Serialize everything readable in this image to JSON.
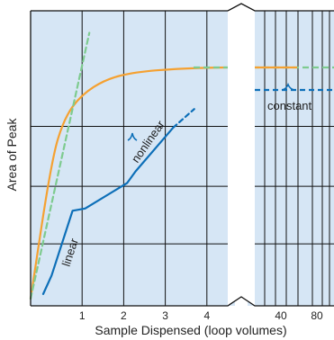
{
  "chart_data": {
    "type": "line",
    "title": "",
    "xlabel": "Sample Dispensed (loop volumes)",
    "ylabel": "Area of Peak",
    "x_segments": [
      {
        "name": "main",
        "xlim": [
          0,
          5
        ],
        "tick_values": [
          1,
          2,
          3,
          4
        ],
        "tick_labels": [
          "1",
          "2",
          "3",
          "4"
        ]
      },
      {
        "name": "extended",
        "tick_labels": [
          "40",
          "80"
        ]
      }
    ],
    "grid": true,
    "axis_break": true,
    "colors": {
      "plot_background": "#d6e6f5",
      "grid": "#111111",
      "orange": "#f5a131",
      "blue": "#0d6fb8",
      "green": "#7ecb8f"
    },
    "series": [
      {
        "color": "#f5a131",
        "style": "solid",
        "points": [
          [
            0,
            0
          ],
          [
            0.5,
            0.6
          ],
          [
            0.8,
            0.78
          ],
          [
            1.2,
            0.88
          ],
          [
            1.8,
            0.95
          ],
          [
            2.5,
            0.98
          ],
          [
            3.5,
            0.995
          ],
          [
            4.5,
            1.0
          ],
          [
            5,
            1.0
          ]
        ]
      },
      {
        "color": "#0d6fb8",
        "style": "solid",
        "points": [
          [
            0.3,
            0.02
          ],
          [
            0.5,
            0.1
          ],
          [
            1,
            0.38
          ],
          [
            1.3,
            0.39
          ],
          [
            2.3,
            0.5
          ],
          [
            2.5,
            0.55
          ],
          [
            3.4,
            0.74
          ]
        ]
      },
      {
        "color": "#0d6fb8",
        "style": "dashed",
        "points": [
          [
            3.4,
            0.74
          ],
          [
            3.9,
            0.82
          ]
        ]
      },
      {
        "color": "#7ecb8f",
        "style": "dashed",
        "points": [
          [
            0,
            0
          ],
          [
            1.4,
            1.15
          ]
        ]
      }
    ],
    "extended_series": [
      {
        "color": "#7ecb8f",
        "style": "dashed",
        "level": 1.0
      },
      {
        "color": "#f5a131",
        "style": "solid",
        "level": 1.0
      },
      {
        "color": "#0d6fb8",
        "style": "dashed",
        "level": 0.85
      }
    ],
    "annotations": [
      {
        "text": "linear",
        "x": 0.7,
        "y": 0.22
      },
      {
        "text": "nonlinear",
        "x": 2.6,
        "y": 0.5
      },
      {
        "text": "constant",
        "x": 42,
        "y": 0.78
      }
    ]
  }
}
